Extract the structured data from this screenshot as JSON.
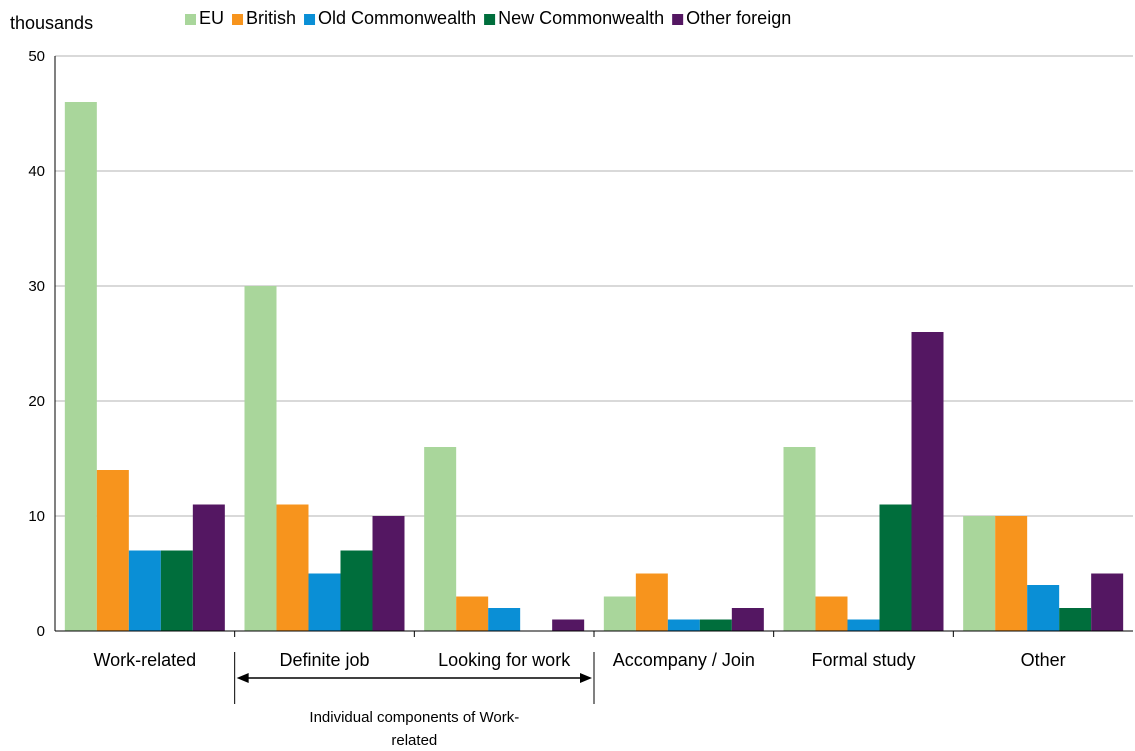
{
  "chart_data": {
    "type": "bar",
    "ylabel": "thousands",
    "ylim": [
      0,
      50
    ],
    "yticks": [
      0,
      10,
      20,
      30,
      40,
      50
    ],
    "grid": true,
    "legend_position": "top",
    "categories": [
      "Work-related",
      "Definite job",
      "Looking for work",
      "Accompany / Join",
      "Formal study",
      "Other"
    ],
    "series": [
      {
        "name": "EU",
        "color": "#a9d69b",
        "values": [
          46,
          30,
          16,
          3,
          16,
          10
        ]
      },
      {
        "name": "British",
        "color": "#f7941d",
        "values": [
          14,
          11,
          3,
          5,
          3,
          10
        ]
      },
      {
        "name": "Old Commonwealth",
        "color": "#0a8fd6",
        "values": [
          7,
          5,
          2,
          1,
          1,
          4
        ]
      },
      {
        "name": "New Commonwealth",
        "color": "#006e3c",
        "values": [
          7,
          7,
          0,
          1,
          11,
          2
        ]
      },
      {
        "name": "Other foreign",
        "color": "#541762",
        "values": [
          11,
          10,
          1,
          2,
          26,
          5
        ]
      }
    ],
    "annotation": {
      "text": "Individual components of Work-related",
      "line1": "Individual components of Work-",
      "line2": "related",
      "from_category": "Definite job",
      "to_category": "Looking for work"
    }
  }
}
